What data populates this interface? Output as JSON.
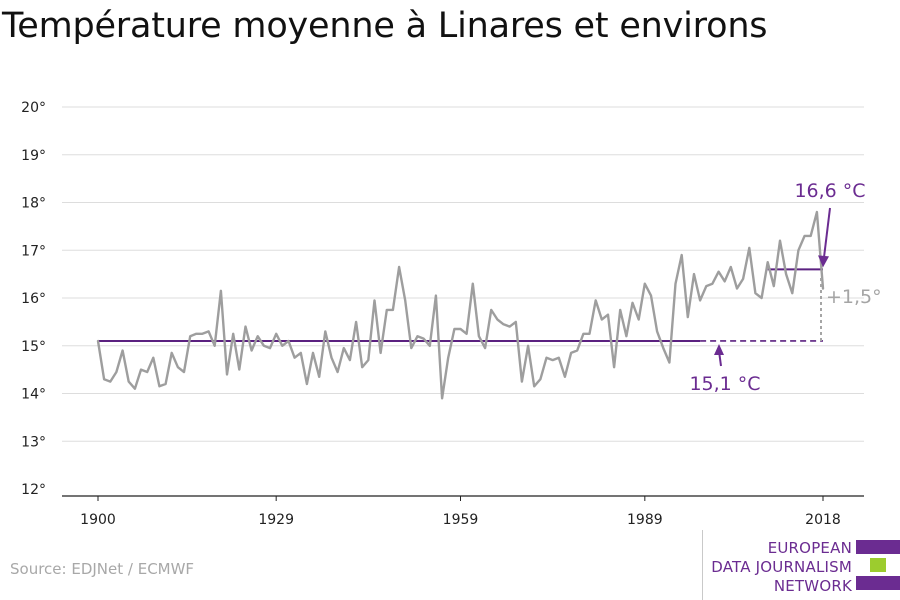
{
  "title": "Température moyenne à Linares et environs",
  "source": "Source: EDJNet / ECMWF",
  "logo": {
    "lines": [
      "EUROPEAN",
      "DATA JOURNALISM",
      "NETWORK"
    ],
    "colors": {
      "text": "#6b2c91",
      "purple": "#6b2c91",
      "green": "#9ccc2e"
    }
  },
  "colors": {
    "series": "#9e9e9e",
    "reference": "#5b2180",
    "annotation": "#6b2c91",
    "delta": "#a5a5a5",
    "grid": "#dddddd",
    "axis": "#222222"
  },
  "chart_data": {
    "type": "line",
    "title": "Température moyenne à Linares et environs",
    "ylim": [
      12,
      20
    ],
    "xlim": [
      1900,
      2018
    ],
    "y_ticks": [
      12,
      13,
      14,
      15,
      16,
      17,
      18,
      19,
      20
    ],
    "y_tick_labels": [
      "12°",
      "13°",
      "14°",
      "15°",
      "16°",
      "17°",
      "18°",
      "19°",
      "20°"
    ],
    "x_ticks": [
      1900,
      1929,
      1959,
      1989,
      2018
    ],
    "x_tick_labels": [
      "1900",
      "1929",
      "1959",
      "1989",
      "2018"
    ],
    "grid": "horizontal",
    "x": [
      1900,
      1901,
      1902,
      1903,
      1904,
      1905,
      1906,
      1907,
      1908,
      1909,
      1910,
      1911,
      1912,
      1913,
      1914,
      1915,
      1916,
      1917,
      1918,
      1919,
      1920,
      1921,
      1922,
      1923,
      1924,
      1925,
      1926,
      1927,
      1928,
      1929,
      1930,
      1931,
      1932,
      1933,
      1934,
      1935,
      1936,
      1937,
      1938,
      1939,
      1940,
      1941,
      1942,
      1943,
      1944,
      1945,
      1946,
      1947,
      1948,
      1949,
      1950,
      1951,
      1952,
      1953,
      1954,
      1955,
      1956,
      1957,
      1958,
      1959,
      1960,
      1961,
      1962,
      1963,
      1964,
      1965,
      1966,
      1967,
      1968,
      1969,
      1970,
      1971,
      1972,
      1973,
      1974,
      1975,
      1976,
      1977,
      1978,
      1979,
      1980,
      1981,
      1982,
      1983,
      1984,
      1985,
      1986,
      1987,
      1988,
      1989,
      1990,
      1991,
      1992,
      1993,
      1994,
      1995,
      1996,
      1997,
      1998,
      1999,
      2000,
      2001,
      2002,
      2003,
      2004,
      2005,
      2006,
      2007,
      2008,
      2009,
      2010,
      2011,
      2012,
      2013,
      2014,
      2015,
      2016,
      2017,
      2018
    ],
    "series": [
      {
        "values": [
          15.1,
          14.3,
          14.25,
          14.45,
          14.9,
          14.25,
          14.1,
          14.5,
          14.45,
          14.75,
          14.15,
          14.2,
          14.85,
          14.55,
          14.45,
          15.2,
          15.25,
          15.25,
          15.3,
          15.0,
          16.15,
          14.4,
          15.25,
          14.5,
          15.4,
          14.9,
          15.2,
          15.0,
          14.95,
          15.25,
          15.0,
          15.1,
          14.75,
          14.85,
          14.2,
          14.85,
          14.35,
          15.3,
          14.75,
          14.45,
          14.95,
          14.7,
          15.5,
          14.55,
          14.7,
          15.95,
          14.85,
          15.75,
          15.75,
          16.65,
          15.95,
          14.95,
          15.2,
          15.15,
          15.0,
          16.05,
          13.9,
          14.75,
          15.35,
          15.35,
          15.25,
          16.3,
          15.2,
          14.95,
          15.75,
          15.55,
          15.45,
          15.4,
          15.5,
          14.25,
          15.0,
          14.15,
          14.3,
          14.75,
          14.7,
          14.75,
          14.35,
          14.85,
          14.9,
          15.25,
          15.25,
          15.95,
          15.55,
          15.65,
          14.55,
          15.75,
          15.2,
          15.9,
          15.55,
          16.3,
          16.05,
          15.3,
          14.95,
          14.65,
          16.3,
          16.9,
          15.6,
          16.5,
          15.95,
          16.25,
          16.3,
          16.55,
          16.35,
          16.65,
          16.2,
          16.4,
          17.05,
          16.1,
          16.0,
          16.75,
          16.25,
          17.2,
          16.5,
          16.1,
          17.0,
          17.3,
          17.3,
          17.8,
          16.2
        ]
      }
    ],
    "annotations": [
      {
        "label": "15,1 °C",
        "reference_value": 15.1,
        "from": 1900,
        "to": 1998
      },
      {
        "label": "16,6 °C",
        "reference_value": 16.6,
        "from": 2009,
        "to": 2018
      },
      {
        "label": "+1,5°",
        "from_value": 15.1,
        "to_value": 16.6
      }
    ]
  }
}
